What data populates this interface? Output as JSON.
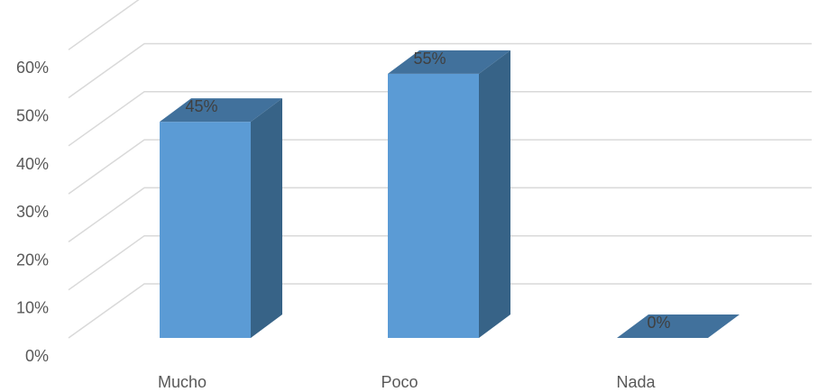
{
  "chart_data": {
    "type": "bar",
    "style": "3d-column",
    "categories": [
      "Mucho",
      "Poco",
      "Nada"
    ],
    "values": [
      45,
      55,
      0
    ],
    "data_labels": [
      "45%",
      "55%",
      "0%"
    ],
    "y_ticks": [
      "0%",
      "10%",
      "20%",
      "30%",
      "40%",
      "50%",
      "60%"
    ],
    "ylim": [
      0,
      60
    ],
    "grid": true,
    "legend": "none",
    "colors": {
      "bar_front": "#5b9bd5",
      "bar_top": "#41719c",
      "bar_side": "#376387",
      "gridline": "#d9d9d9"
    }
  }
}
